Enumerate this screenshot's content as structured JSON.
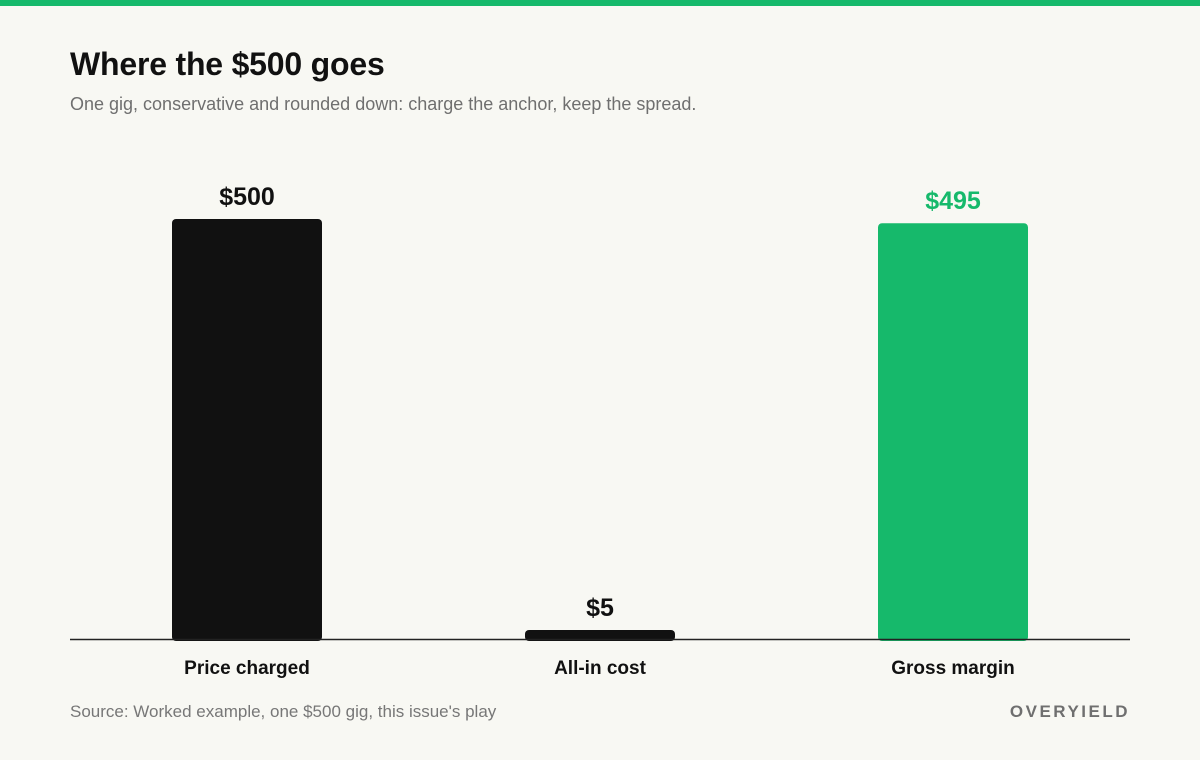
{
  "header": {
    "title": "Where the $500 goes",
    "subtitle": "One gig, conservative and rounded down: charge the anchor, keep the spread."
  },
  "footer": {
    "source": "Source: Worked example, one $500 gig, this issue's play",
    "brand": "OVERYIELD"
  },
  "colors": {
    "accent": "#16b96b",
    "dark": "#111111",
    "axis": "#222222",
    "background": "#f8f8f3"
  },
  "chart_data": {
    "type": "bar",
    "title": "Where the $500 goes",
    "xlabel": "",
    "ylabel": "",
    "ylim": [
      0,
      500
    ],
    "grid": false,
    "categories": [
      "Price charged",
      "All-in cost",
      "Gross margin"
    ],
    "values": [
      500,
      5,
      495
    ],
    "value_labels": [
      "$500",
      "$5",
      "$495"
    ],
    "bar_colors": [
      "#111111",
      "#111111",
      "#16b96b"
    ]
  }
}
